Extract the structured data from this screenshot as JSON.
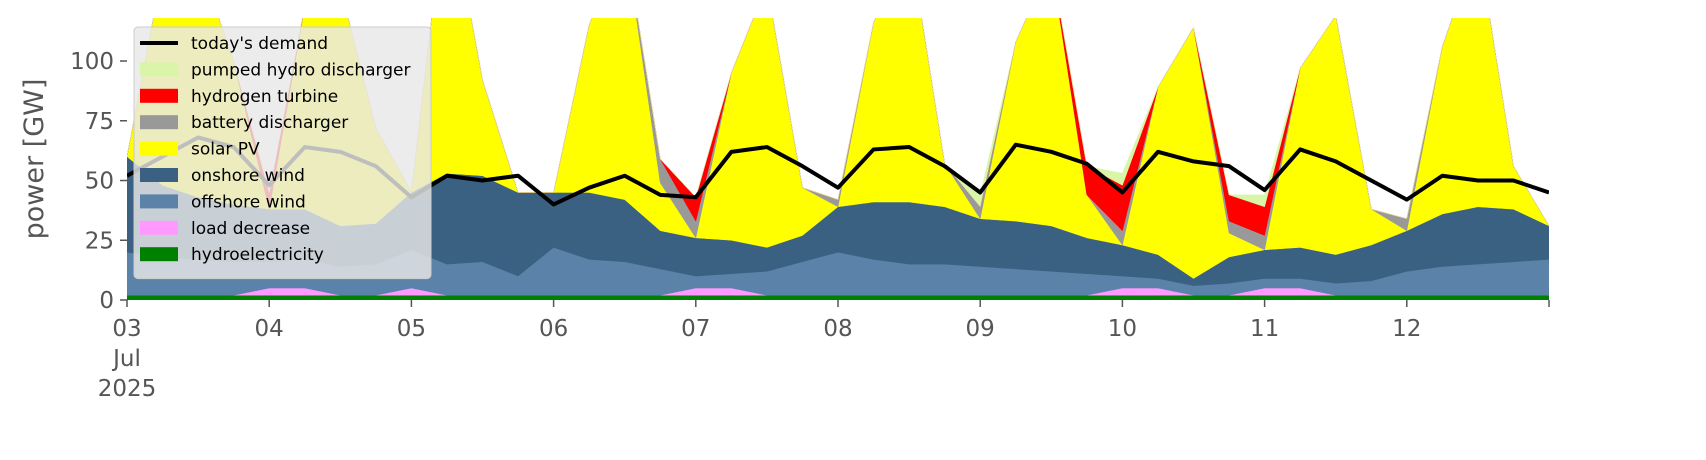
{
  "chart_data": {
    "type": "area",
    "title": "",
    "ylabel": "power [GW]",
    "ylim": [
      0,
      118
    ],
    "yticks": [
      0,
      25,
      50,
      75,
      100
    ],
    "xlim": [
      0,
      10
    ],
    "xticks": [
      {
        "x": 0,
        "lines": [
          "03",
          "Jul",
          "2025"
        ]
      },
      {
        "x": 1,
        "lines": [
          "04"
        ]
      },
      {
        "x": 2,
        "lines": [
          "05"
        ]
      },
      {
        "x": 3,
        "lines": [
          "06"
        ]
      },
      {
        "x": 4,
        "lines": [
          "07"
        ]
      },
      {
        "x": 5,
        "lines": [
          "08"
        ]
      },
      {
        "x": 6,
        "lines": [
          "09"
        ]
      },
      {
        "x": 7,
        "lines": [
          "10"
        ]
      },
      {
        "x": 8,
        "lines": [
          "11"
        ]
      },
      {
        "x": 9,
        "lines": [
          "12"
        ]
      }
    ],
    "x_unit": "days since 03 Jul 2025",
    "grid": false,
    "legend_position": "top-left",
    "legend": [
      {
        "label": "today's demand",
        "kind": "line",
        "color": "#000000"
      },
      {
        "label": "pumped hydro discharger",
        "kind": "patch",
        "color": "#d9f5a8"
      },
      {
        "label": "hydrogen turbine",
        "kind": "patch",
        "color": "#ff0000"
      },
      {
        "label": "battery discharger",
        "kind": "patch",
        "color": "#999999"
      },
      {
        "label": "solar PV",
        "kind": "patch",
        "color": "#ffff00"
      },
      {
        "label": "onshore wind",
        "kind": "patch",
        "color": "#3b6182"
      },
      {
        "label": "offshore wind",
        "kind": "patch",
        "color": "#5b82a8"
      },
      {
        "label": "load decrease",
        "kind": "patch",
        "color": "#ff99ff"
      },
      {
        "label": "hydroelectricity",
        "kind": "patch",
        "color": "#008000"
      }
    ],
    "x": [
      0,
      0.25,
      0.5,
      0.75,
      1,
      1.25,
      1.5,
      1.75,
      2,
      2.25,
      2.5,
      2.75,
      3,
      3.25,
      3.5,
      3.75,
      4,
      4.25,
      4.5,
      4.75,
      5,
      5.25,
      5.5,
      5.75,
      6,
      6.25,
      6.5,
      6.75,
      7,
      7.25,
      7.5,
      7.75,
      8,
      8.25,
      8.5,
      8.75,
      9,
      9.25,
      9.5,
      9.75,
      10
    ],
    "series": [
      {
        "name": "hydroelectricity",
        "color": "#008000",
        "values": [
          2,
          2,
          2,
          2,
          2,
          2,
          2,
          2,
          2,
          2,
          2,
          2,
          2,
          2,
          2,
          2,
          2,
          2,
          2,
          2,
          2,
          2,
          2,
          2,
          2,
          2,
          2,
          2,
          2,
          2,
          2,
          2,
          2,
          2,
          2,
          2,
          2,
          2,
          2,
          2,
          2
        ]
      },
      {
        "name": "load decrease",
        "color": "#ff99ff",
        "values": [
          0,
          0,
          0,
          0,
          3,
          3,
          0,
          0,
          3,
          0,
          0,
          0,
          0,
          0,
          0,
          0,
          3,
          3,
          0,
          0,
          0,
          0,
          0,
          0,
          0,
          0,
          0,
          0,
          3,
          3,
          0,
          0,
          3,
          3,
          0,
          0,
          0,
          0,
          0,
          0,
          0
        ]
      },
      {
        "name": "offshore wind",
        "color": "#5b82a8",
        "values": [
          18,
          16,
          15,
          14,
          11,
          12,
          12,
          13,
          16,
          13,
          14,
          8,
          20,
          15,
          14,
          11,
          5,
          6,
          10,
          14,
          18,
          15,
          13,
          13,
          12,
          11,
          10,
          9,
          5,
          4,
          4,
          5,
          4,
          4,
          5,
          6,
          10,
          12,
          13,
          14,
          15
        ]
      },
      {
        "name": "onshore wind",
        "color": "#3b6182",
        "values": [
          40,
          30,
          26,
          24,
          22,
          21,
          17,
          17,
          24,
          38,
          36,
          35,
          23,
          28,
          26,
          16,
          16,
          14,
          10,
          11,
          19,
          24,
          26,
          24,
          20,
          20,
          19,
          15,
          13,
          10,
          3,
          11,
          12,
          13,
          12,
          15,
          17,
          22,
          24,
          22,
          14
        ]
      },
      {
        "name": "solar PV",
        "color": "#ffff00",
        "values": [
          0,
          90,
          100,
          60,
          0,
          85,
          100,
          40,
          0,
          120,
          40,
          0,
          0,
          70,
          110,
          20,
          0,
          70,
          110,
          20,
          0,
          75,
          110,
          18,
          0,
          75,
          110,
          18,
          0,
          70,
          105,
          10,
          0,
          75,
          100,
          15,
          0,
          70,
          110,
          18,
          0
        ]
      },
      {
        "name": "battery discharger",
        "color": "#999999",
        "values": [
          0,
          0,
          0,
          0,
          0,
          0,
          0,
          0,
          0,
          0,
          0,
          0,
          0,
          0,
          0,
          10,
          7,
          0,
          0,
          0,
          3,
          0,
          0,
          0,
          5,
          0,
          0,
          0,
          6,
          0,
          0,
          5,
          6,
          0,
          0,
          0,
          5,
          0,
          0,
          0,
          0
        ]
      },
      {
        "name": "hydrogen turbine",
        "color": "#ff0000",
        "values": [
          0,
          0,
          0,
          0,
          7,
          0,
          0,
          0,
          0,
          0,
          0,
          0,
          0,
          0,
          0,
          0,
          10,
          0,
          0,
          0,
          0,
          0,
          0,
          0,
          0,
          0,
          0,
          12,
          19,
          0,
          0,
          11,
          12,
          0,
          0,
          0,
          0,
          0,
          0,
          0,
          0
        ]
      },
      {
        "name": "pumped hydro discharger",
        "color": "#d9f5a8",
        "values": [
          0,
          0,
          0,
          0,
          0,
          0,
          0,
          0,
          0,
          0,
          0,
          0,
          0,
          0,
          0,
          0,
          0,
          0,
          0,
          0,
          0,
          0,
          0,
          0,
          5,
          0,
          0,
          0,
          5,
          0,
          0,
          0,
          5,
          0,
          0,
          0,
          0,
          0,
          0,
          0,
          0
        ]
      }
    ],
    "demand": {
      "name": "today's demand",
      "color": "#000000",
      "values": [
        52,
        60,
        68,
        64,
        48,
        64,
        62,
        56,
        43,
        52,
        50,
        52,
        40,
        47,
        52,
        44,
        43,
        62,
        64,
        56,
        47,
        63,
        64,
        56,
        45,
        65,
        62,
        57,
        45,
        62,
        58,
        56,
        46,
        63,
        58,
        50,
        42,
        52,
        50,
        50,
        45
      ]
    }
  }
}
